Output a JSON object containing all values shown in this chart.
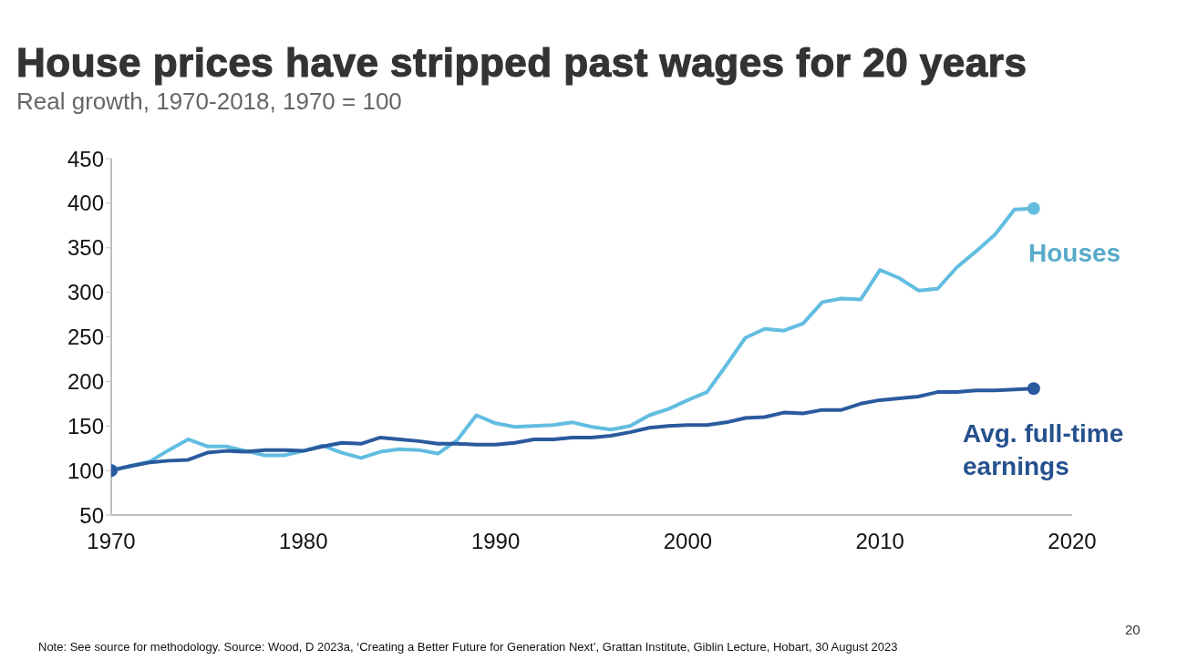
{
  "chart_data": {
    "type": "line",
    "title": "House prices have stripped past wages for 20 years",
    "subtitle": "Real growth, 1970-2018, 1970 = 100",
    "x": [
      1970,
      1971,
      1972,
      1973,
      1974,
      1975,
      1976,
      1977,
      1978,
      1979,
      1980,
      1981,
      1982,
      1983,
      1984,
      1985,
      1986,
      1987,
      1988,
      1989,
      1990,
      1991,
      1992,
      1993,
      1994,
      1995,
      1996,
      1997,
      1998,
      1999,
      2000,
      2001,
      2002,
      2003,
      2004,
      2005,
      2006,
      2007,
      2008,
      2009,
      2010,
      2011,
      2012,
      2013,
      2014,
      2015,
      2016,
      2017,
      2018
    ],
    "series": [
      {
        "name": "Houses",
        "color": "#62bde0",
        "values": [
          100,
          105,
          110,
          123,
          135,
          127,
          127,
          122,
          117,
          117,
          122,
          128,
          120,
          114,
          121,
          124,
          123,
          119,
          134,
          162,
          153,
          149,
          150,
          151,
          154,
          149,
          146,
          150,
          162,
          169,
          179,
          188,
          218,
          249,
          259,
          257,
          265,
          289,
          293,
          292,
          325,
          316,
          302,
          304,
          328,
          346,
          365,
          393,
          394
        ]
      },
      {
        "name": "Avg. full-time earnings",
        "color": "#2a5a9e",
        "values": [
          100,
          105,
          109,
          111,
          112,
          120,
          122,
          121,
          123,
          123,
          122,
          127,
          131,
          130,
          137,
          135,
          133,
          130,
          130,
          129,
          129,
          131,
          135,
          135,
          137,
          137,
          139,
          143,
          148,
          150,
          151,
          151,
          154,
          159,
          160,
          165,
          164,
          168,
          168,
          175,
          179,
          181,
          183,
          188,
          188,
          190,
          190,
          191,
          192
        ]
      }
    ],
    "xlim": [
      1970,
      2020
    ],
    "xticks": [
      1970,
      1980,
      1990,
      2000,
      2010,
      2020
    ],
    "ylim": [
      50,
      450
    ],
    "yticks": [
      50,
      100,
      150,
      200,
      250,
      300,
      350,
      400,
      450
    ],
    "grid": false,
    "annotations": [
      "Note: See source for methodology. Source: Wood, D 2023a, ‘Creating a Better Future for Generation Next’, Grattan Institute, Giblin Lecture, Hobart, 30 August 2023",
      "20"
    ]
  }
}
